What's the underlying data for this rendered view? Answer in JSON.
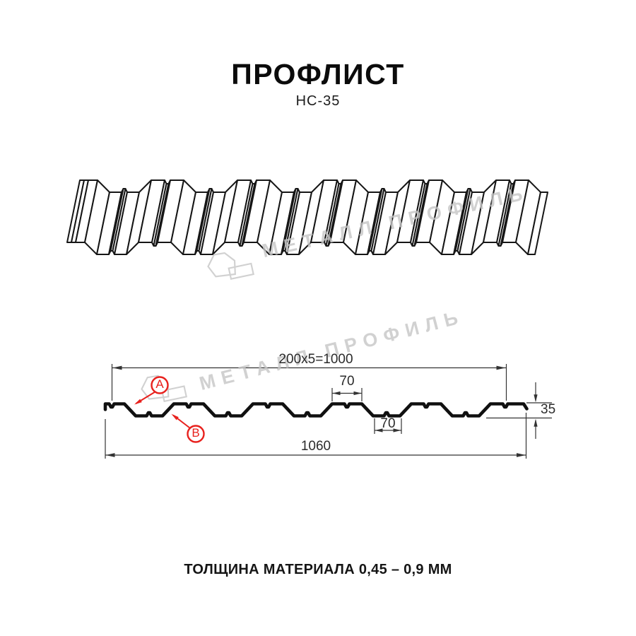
{
  "page": {
    "title": "ПРОФЛИСТ",
    "subtitle": "НС-35",
    "footer": "ТОЛЩИНА МАТЕРИАЛА 0,45 – 0,9 ММ"
  },
  "watermark": {
    "text": "МЕТАЛЛ ПРОФИЛЬ"
  },
  "section_dimensions": {
    "top_span": "200x5=1000",
    "rib_top_width": "70",
    "rib_bottom_width": "70",
    "profile_height": "35",
    "total_width": "1060",
    "point_a": "A",
    "point_b": "B"
  },
  "colors": {
    "accent_red": "#e8211d",
    "line_black": "#161616",
    "dim_gray": "#333333",
    "watermark_gray": "#c6c6c6"
  }
}
